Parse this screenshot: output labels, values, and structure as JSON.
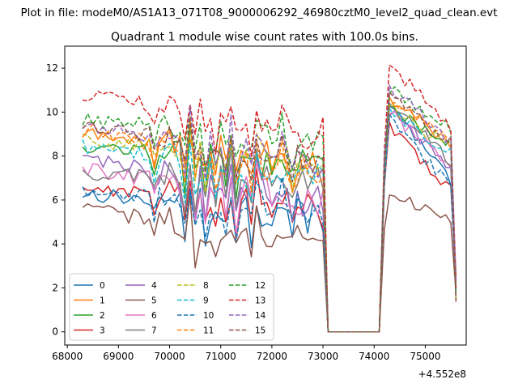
{
  "chart_data": {
    "type": "line",
    "suptitle": "Plot in file: modeM0/AS1A13_071T08_9000006292_46980cztM0_level2_quad_clean.evt",
    "title": "Quadrant 1 module wise count rates with 100.0s bins.",
    "xlabel": "",
    "ylabel": "",
    "x_offset_label": "+4.552e8",
    "x_offset": 455200000,
    "xlim": [
      67950,
      75800
    ],
    "ylim": [
      -0.6,
      13.0
    ],
    "xticks": [
      68000,
      69000,
      70000,
      71000,
      72000,
      73000,
      74000,
      75000
    ],
    "yticks": [
      0,
      2,
      4,
      6,
      8,
      10,
      12
    ],
    "grid": false,
    "legend": {
      "location": "lower-left",
      "ncol": 4
    },
    "x_start": 68300,
    "x_step": 100,
    "n_points": 74,
    "series": [
      {
        "name": "0",
        "color": "#1f77b4",
        "dash": "solid"
      },
      {
        "name": "1",
        "color": "#ff7f0e",
        "dash": "solid"
      },
      {
        "name": "2",
        "color": "#2ca02c",
        "dash": "solid"
      },
      {
        "name": "3",
        "color": "#d62728",
        "dash": "solid"
      },
      {
        "name": "4",
        "color": "#9467bd",
        "dash": "solid"
      },
      {
        "name": "5",
        "color": "#8c564b",
        "dash": "solid"
      },
      {
        "name": "6",
        "color": "#e377c2",
        "dash": "solid"
      },
      {
        "name": "7",
        "color": "#7f7f7f",
        "dash": "solid"
      },
      {
        "name": "8",
        "color": "#bcbd22",
        "dash": "dashed"
      },
      {
        "name": "9",
        "color": "#17becf",
        "dash": "dashed"
      },
      {
        "name": "10",
        "color": "#1f77b4",
        "dash": "dashed"
      },
      {
        "name": "11",
        "color": "#ff7f0e",
        "dash": "dashed"
      },
      {
        "name": "12",
        "color": "#2ca02c",
        "dash": "dashed"
      },
      {
        "name": "13",
        "color": "#d62728",
        "dash": "dashed"
      },
      {
        "name": "14",
        "color": "#9467bd",
        "dash": "dashed"
      },
      {
        "name": "15",
        "color": "#8c564b",
        "dash": "dashed"
      }
    ],
    "series_levels": {
      "0": {
        "seg1": [
          6.3,
          5.2
        ],
        "seg2": [
          10.3,
          6.8
        ]
      },
      "1": {
        "seg1": [
          9.0,
          7.6
        ],
        "seg2": [
          10.6,
          8.6
        ]
      },
      "2": {
        "seg1": [
          8.5,
          7.5
        ],
        "seg2": [
          10.2,
          8.6
        ]
      },
      "3": {
        "seg1": [
          6.6,
          5.5
        ],
        "seg2": [
          9.3,
          6.5
        ]
      },
      "4": {
        "seg1": [
          8.0,
          5.8
        ],
        "seg2": [
          10.1,
          7.4
        ]
      },
      "5": {
        "seg1": [
          5.6,
          4.0
        ],
        "seg2": [
          6.4,
          5.0
        ]
      },
      "6": {
        "seg1": [
          7.4,
          5.8
        ],
        "seg2": [
          10.0,
          7.6
        ]
      },
      "7": {
        "seg1": [
          7.2,
          7.0
        ],
        "seg2": [
          10.4,
          7.8
        ]
      },
      "8": {
        "seg1": [
          8.8,
          7.6
        ],
        "seg2": [
          10.2,
          8.4
        ]
      },
      "9": {
        "seg1": [
          8.5,
          6.8
        ],
        "seg2": [
          10.0,
          8.2
        ]
      },
      "10": {
        "seg1": [
          6.3,
          5.6
        ],
        "seg2": [
          9.6,
          6.6
        ]
      },
      "11": {
        "seg1": [
          9.2,
          7.2
        ],
        "seg2": [
          10.6,
          8.8
        ]
      },
      "12": {
        "seg1": [
          9.7,
          8.6
        ],
        "seg2": [
          11.0,
          9.2
        ]
      },
      "13": {
        "seg1": [
          10.8,
          9.0
        ],
        "seg2": [
          12.2,
          9.4
        ]
      },
      "14": {
        "seg1": [
          9.5,
          7.8
        ],
        "seg2": [
          11.2,
          8.6
        ]
      },
      "15": {
        "seg1": [
          9.4,
          7.8
        ],
        "seg2": [
          10.8,
          8.4
        ]
      }
    },
    "gap": {
      "from": 73100,
      "to": 74100,
      "value": 0.0
    },
    "end_values": {
      "x": 75600,
      "range": [
        1.3,
        2.6
      ]
    }
  }
}
